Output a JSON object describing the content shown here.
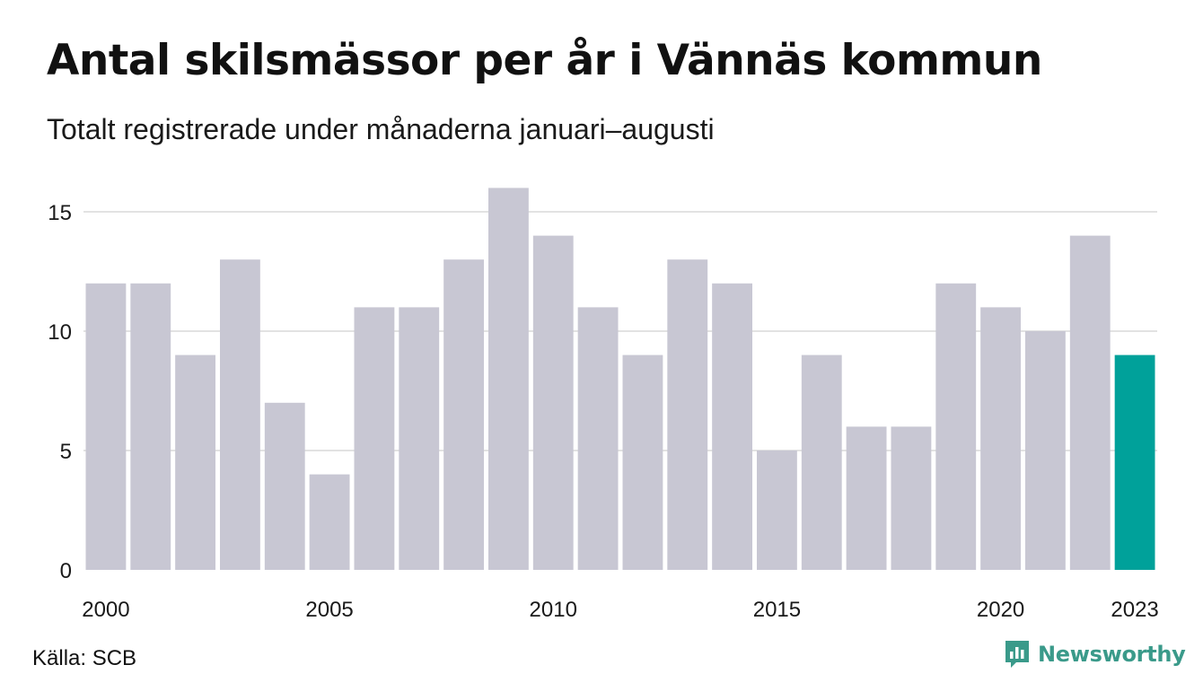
{
  "title": "Antal skilsmässor per år i Vännäs kommun",
  "subtitle": "Totalt registrerade under månaderna januari–augusti",
  "source": "Källa: SCB",
  "brand": {
    "name": "Newsworthy",
    "icon": "newsworthy-logo-icon",
    "color": "#3a9a8a"
  },
  "chart_data": {
    "type": "bar",
    "categories": [
      "2000",
      "2001",
      "2002",
      "2003",
      "2004",
      "2005",
      "2006",
      "2007",
      "2008",
      "2009",
      "2010",
      "2011",
      "2012",
      "2013",
      "2014",
      "2015",
      "2016",
      "2017",
      "2018",
      "2019",
      "2020",
      "2021",
      "2022",
      "2023"
    ],
    "values": [
      12,
      12,
      9,
      13,
      7,
      4,
      11,
      11,
      13,
      16,
      14,
      11,
      9,
      13,
      12,
      5,
      9,
      6,
      6,
      12,
      11,
      10,
      14,
      9
    ],
    "x_tick_labels": [
      "2000",
      "2005",
      "2010",
      "2015",
      "2020",
      "2023"
    ],
    "y_ticks": [
      0,
      5,
      10,
      15
    ],
    "ylim": [
      0,
      16
    ],
    "grid": true,
    "bar_color": "#c8c7d3",
    "highlight": {
      "category": "2023",
      "color": "#00a19a"
    }
  }
}
